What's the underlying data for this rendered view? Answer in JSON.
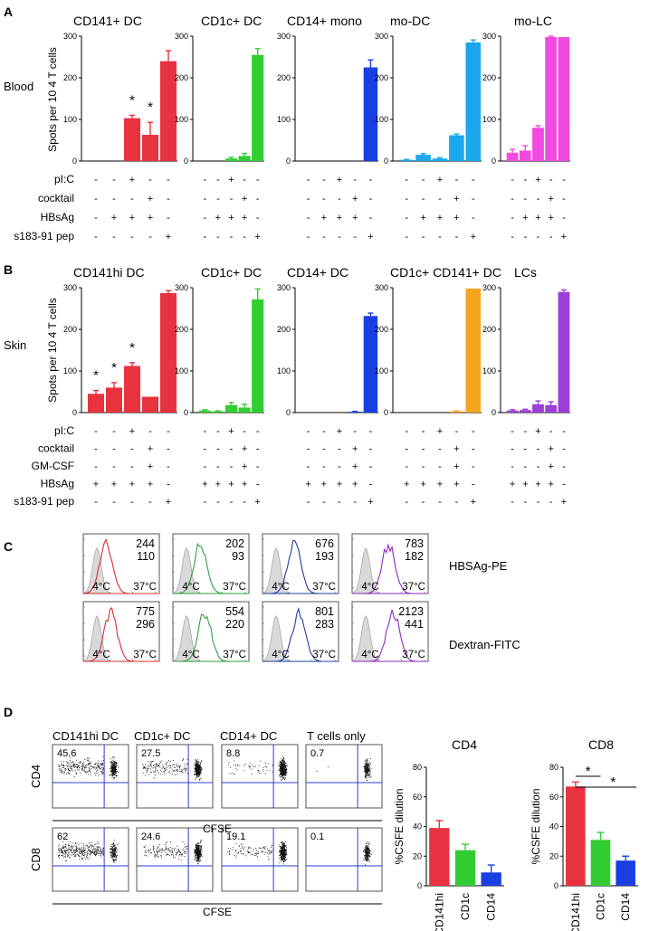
{
  "panel_a": {
    "label": "A",
    "row_label": "Blood",
    "y_axis": "Spots per 10 4 T cells",
    "conditions": [
      "pI:C",
      "cocktail",
      "HBsAg",
      "s183-91 pep"
    ],
    "charts": [
      {
        "title": "CD141+ DC",
        "color": "#e8323f",
        "values": [
          0,
          0,
          103,
          63,
          240
        ],
        "errors": [
          0,
          0,
          7,
          30,
          25
        ],
        "stars": [
          false,
          false,
          true,
          true,
          false
        ],
        "symbols": [
          [
            "-",
            "-",
            "+",
            "-",
            "-"
          ],
          [
            "-",
            "-",
            "-",
            "+",
            "-"
          ],
          [
            "-",
            "+",
            "+",
            "+",
            "-"
          ],
          [
            "-",
            "-",
            "-",
            "-",
            "+"
          ]
        ]
      },
      {
        "title": "CD1c+ DC",
        "color": "#32cd32",
        "values": [
          0,
          0,
          6,
          12,
          255
        ],
        "errors": [
          0,
          0,
          3,
          6,
          15
        ],
        "stars": [
          false,
          false,
          false,
          false,
          false
        ],
        "symbols": [
          [
            "-",
            "-",
            "+",
            "-",
            "-"
          ],
          [
            "-",
            "-",
            "-",
            "+",
            "-"
          ],
          [
            "-",
            "+",
            "+",
            "+",
            "-"
          ],
          [
            "-",
            "-",
            "-",
            "-",
            "+"
          ]
        ]
      },
      {
        "title": "CD14+ mono",
        "color": "#1a3fe0",
        "values": [
          0,
          0,
          0,
          0,
          225
        ],
        "errors": [
          0,
          0,
          0,
          0,
          18
        ],
        "stars": [
          false,
          false,
          false,
          false,
          false
        ],
        "symbols": [
          [
            "-",
            "-",
            "+",
            "-",
            "-"
          ],
          [
            "-",
            "-",
            "-",
            "+",
            "-"
          ],
          [
            "-",
            "+",
            "+",
            "+",
            "-"
          ],
          [
            "-",
            "-",
            "-",
            "-",
            "+"
          ]
        ]
      },
      {
        "title": "mo-DC",
        "color": "#1aa7ec",
        "values": [
          3,
          15,
          6,
          62,
          285
        ],
        "errors": [
          1,
          3,
          2,
          3,
          6
        ],
        "stars": [
          false,
          false,
          false,
          false,
          false
        ],
        "symbols": [
          [
            "-",
            "-",
            "+",
            "-",
            "-"
          ],
          [
            "-",
            "-",
            "-",
            "+",
            "-"
          ],
          [
            "-",
            "+",
            "+",
            "+",
            "-"
          ],
          [
            "-",
            "-",
            "-",
            "-",
            "+"
          ]
        ]
      },
      {
        "title": "mo-LC",
        "color": "#f04ae0",
        "values": [
          20,
          25,
          80,
          298,
          298
        ],
        "errors": [
          8,
          12,
          5,
          2,
          0
        ],
        "stars": [
          false,
          false,
          false,
          false,
          false
        ],
        "symbols": [
          [
            "-",
            "-",
            "+",
            "-",
            "-"
          ],
          [
            "-",
            "-",
            "-",
            "+",
            "-"
          ],
          [
            "-",
            "+",
            "+",
            "+",
            "-"
          ],
          [
            "-",
            "-",
            "-",
            "-",
            "+"
          ]
        ]
      }
    ]
  },
  "panel_b": {
    "label": "B",
    "row_label": "Skin",
    "y_axis": "Spots per 10 4 T cells",
    "conditions": [
      "pI:C",
      "cocktail",
      "GM-CSF",
      "HBsAg",
      "s183-91 pep"
    ],
    "charts": [
      {
        "title": "CD141hi DC",
        "color": "#e8323f",
        "values": [
          45,
          60,
          112,
          38,
          287
        ],
        "errors": [
          8,
          12,
          8,
          0,
          6
        ],
        "stars": [
          true,
          true,
          true,
          false,
          false
        ],
        "symbols": [
          [
            "-",
            "-",
            "+",
            "-",
            "-"
          ],
          [
            "-",
            "-",
            "-",
            "+",
            "-"
          ],
          [
            "-",
            "-",
            "-",
            "+",
            "-"
          ],
          [
            "+",
            "+",
            "+",
            "+",
            "-"
          ],
          [
            "-",
            "-",
            "-",
            "-",
            "+"
          ]
        ]
      },
      {
        "title": "CD1c+ DC",
        "color": "#32cd32",
        "values": [
          5,
          3,
          18,
          12,
          272
        ],
        "errors": [
          2,
          1,
          6,
          8,
          25
        ],
        "stars": [
          false,
          false,
          false,
          false,
          false
        ],
        "symbols": [
          [
            "-",
            "-",
            "+",
            "-",
            "-"
          ],
          [
            "-",
            "-",
            "-",
            "+",
            "-"
          ],
          [
            "-",
            "-",
            "-",
            "+",
            "-"
          ],
          [
            "+",
            "+",
            "+",
            "+",
            "-"
          ],
          [
            "-",
            "-",
            "-",
            "-",
            "+"
          ]
        ]
      },
      {
        "title": "CD14+ DC",
        "color": "#1a3fe0",
        "values": [
          0,
          0,
          0,
          2,
          232
        ],
        "errors": [
          0,
          0,
          0,
          1,
          7
        ],
        "stars": [
          false,
          false,
          false,
          false,
          false
        ],
        "symbols": [
          [
            "-",
            "-",
            "+",
            "-",
            "-"
          ],
          [
            "-",
            "-",
            "-",
            "+",
            "-"
          ],
          [
            "-",
            "-",
            "-",
            "+",
            "-"
          ],
          [
            "+",
            "+",
            "+",
            "+",
            "-"
          ],
          [
            "-",
            "-",
            "-",
            "-",
            "+"
          ]
        ]
      },
      {
        "title": "CD1c+ CD141+ DC",
        "color": "#f5a51e",
        "values": [
          0,
          0,
          0,
          3,
          298
        ],
        "errors": [
          0,
          0,
          0,
          1,
          0
        ],
        "stars": [
          false,
          false,
          false,
          false,
          false
        ],
        "symbols": [
          [
            "-",
            "-",
            "+",
            "-",
            "-"
          ],
          [
            "-",
            "-",
            "-",
            "+",
            "-"
          ],
          [
            "-",
            "-",
            "-",
            "+",
            "-"
          ],
          [
            "+",
            "+",
            "+",
            "+",
            "-"
          ],
          [
            "-",
            "-",
            "-",
            "-",
            "+"
          ]
        ]
      },
      {
        "title": "LCs",
        "color": "#9b3fd6",
        "values": [
          5,
          6,
          20,
          18,
          290
        ],
        "errors": [
          2,
          2,
          8,
          8,
          5
        ],
        "stars": [
          false,
          false,
          false,
          false,
          false
        ],
        "symbols": [
          [
            "-",
            "-",
            "+",
            "-",
            "-"
          ],
          [
            "-",
            "-",
            "-",
            "+",
            "-"
          ],
          [
            "-",
            "-",
            "-",
            "+",
            "-"
          ],
          [
            "+",
            "+",
            "+",
            "+",
            "-"
          ],
          [
            "-",
            "-",
            "-",
            "-",
            "+"
          ]
        ]
      }
    ]
  },
  "panel_c": {
    "label": "C",
    "row_labels": [
      "HBSAg-PE",
      "Dextran-FITC"
    ],
    "temp_cold": "4°C",
    "temp_warm": "37°C",
    "cells": [
      {
        "color": "#d22f2f",
        "top": [
          "244",
          "110"
        ],
        "bottom": [
          "775",
          "296"
        ]
      },
      {
        "color": "#2e9e3f",
        "top": [
          "202",
          "93"
        ],
        "bottom": [
          "554",
          "220"
        ]
      },
      {
        "color": "#1f3c9c",
        "top": [
          "676",
          "193"
        ],
        "bottom": [
          "801",
          "283"
        ]
      },
      {
        "color": "#8a2bc2",
        "top": [
          "783",
          "182"
        ],
        "bottom": [
          "2123",
          "441"
        ]
      }
    ]
  },
  "panel_d": {
    "label": "D",
    "row_labels": [
      "CD4",
      "CD8"
    ],
    "x_axis": "CFSE",
    "columns": [
      {
        "title": "CD141hi DC",
        "color": "#d22f2f",
        "cd4": "45.6",
        "cd8": "62"
      },
      {
        "title": "CD1c+ DC",
        "color": "#2e9e3f",
        "cd4": "27.5",
        "cd8": "24.6"
      },
      {
        "title": "CD14+ DC",
        "color": "#1f3c9c",
        "cd4": "8.8",
        "cd8": "19.1"
      },
      {
        "title": "T cells only",
        "color": "#000000",
        "cd4": "0.7",
        "cd8": "0.1"
      }
    ],
    "bar_charts": [
      {
        "title": "CD4",
        "y_label": "%CSFE dilution",
        "ylim": [
          0,
          80
        ],
        "categories": [
          "CD141hi",
          "CD1c",
          "CD14"
        ],
        "values": [
          39,
          24,
          9
        ],
        "errors": [
          5,
          4,
          5
        ],
        "colors": [
          "#e8323f",
          "#32cd32",
          "#1a3fe0"
        ],
        "stars": []
      },
      {
        "title": "CD8",
        "y_label": "%CSFE dilution",
        "ylim": [
          0,
          80
        ],
        "categories": [
          "CD141hi",
          "CD1c",
          "CD14"
        ],
        "values": [
          67,
          31,
          17
        ],
        "errors": [
          3,
          5,
          3
        ],
        "colors": [
          "#e8323f",
          "#32cd32",
          "#1a3fe0"
        ],
        "stars": [
          "*",
          "*"
        ]
      }
    ]
  },
  "chart_data": [
    {
      "type": "bar",
      "title": "A Blood: CD141+ DC",
      "categories": [
        "1",
        "2",
        "3",
        "4",
        "5"
      ],
      "values": [
        0,
        0,
        103,
        63,
        240
      ],
      "ylabel": "Spots per 10^4 T cells",
      "ylim": [
        0,
        300
      ]
    },
    {
      "type": "bar",
      "title": "A Blood: CD1c+ DC",
      "categories": [
        "1",
        "2",
        "3",
        "4",
        "5"
      ],
      "values": [
        0,
        0,
        6,
        12,
        255
      ],
      "ylabel": "Spots per 10^4 T cells",
      "ylim": [
        0,
        300
      ]
    },
    {
      "type": "bar",
      "title": "A Blood: CD14+ mono",
      "categories": [
        "1",
        "2",
        "3",
        "4",
        "5"
      ],
      "values": [
        0,
        0,
        0,
        0,
        225
      ],
      "ylabel": "Spots per 10^4 T cells",
      "ylim": [
        0,
        300
      ]
    },
    {
      "type": "bar",
      "title": "A Blood: mo-DC",
      "categories": [
        "1",
        "2",
        "3",
        "4",
        "5"
      ],
      "values": [
        3,
        15,
        6,
        62,
        285
      ],
      "ylabel": "Spots per 10^4 T cells",
      "ylim": [
        0,
        300
      ]
    },
    {
      "type": "bar",
      "title": "A Blood: mo-LC",
      "categories": [
        "1",
        "2",
        "3",
        "4",
        "5"
      ],
      "values": [
        20,
        25,
        80,
        298,
        298
      ],
      "ylabel": "Spots per 10^4 T cells",
      "ylim": [
        0,
        300
      ]
    },
    {
      "type": "bar",
      "title": "B Skin: CD141hi DC",
      "categories": [
        "1",
        "2",
        "3",
        "4",
        "5"
      ],
      "values": [
        45,
        60,
        112,
        38,
        287
      ],
      "ylabel": "Spots per 10^4 T cells",
      "ylim": [
        0,
        300
      ]
    },
    {
      "type": "bar",
      "title": "B Skin: CD1c+ DC",
      "categories": [
        "1",
        "2",
        "3",
        "4",
        "5"
      ],
      "values": [
        5,
        3,
        18,
        12,
        272
      ],
      "ylabel": "Spots per 10^4 T cells",
      "ylim": [
        0,
        300
      ]
    },
    {
      "type": "bar",
      "title": "B Skin: CD14+ DC",
      "categories": [
        "1",
        "2",
        "3",
        "4",
        "5"
      ],
      "values": [
        0,
        0,
        0,
        2,
        232
      ],
      "ylabel": "Spots per 10^4 T cells",
      "ylim": [
        0,
        300
      ]
    },
    {
      "type": "bar",
      "title": "B Skin: CD1c+ CD141+ DC",
      "categories": [
        "1",
        "2",
        "3",
        "4",
        "5"
      ],
      "values": [
        0,
        0,
        0,
        3,
        298
      ],
      "ylabel": "Spots per 10^4 T cells",
      "ylim": [
        0,
        300
      ]
    },
    {
      "type": "bar",
      "title": "B Skin: LCs",
      "categories": [
        "1",
        "2",
        "3",
        "4",
        "5"
      ],
      "values": [
        5,
        6,
        20,
        18,
        290
      ],
      "ylabel": "Spots per 10^4 T cells",
      "ylim": [
        0,
        300
      ]
    },
    {
      "type": "bar",
      "title": "D: CD4",
      "categories": [
        "CD141hi",
        "CD1c",
        "CD14"
      ],
      "values": [
        39,
        24,
        9
      ],
      "ylabel": "%CSFE dilution",
      "ylim": [
        0,
        80
      ]
    },
    {
      "type": "bar",
      "title": "D: CD8",
      "categories": [
        "CD141hi",
        "CD1c",
        "CD14"
      ],
      "values": [
        67,
        31,
        17
      ],
      "ylabel": "%CSFE dilution",
      "ylim": [
        0,
        80
      ]
    }
  ]
}
